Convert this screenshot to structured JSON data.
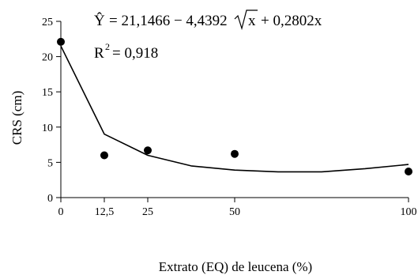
{
  "chart_data": {
    "type": "scatter",
    "xlabel": "Extrato (EQ) de leucena (%)",
    "ylabel": "CRS (cm)",
    "xlim": [
      0,
      100
    ],
    "ylim": [
      0,
      25
    ],
    "x_ticks": [
      0,
      12.5,
      25,
      50,
      100
    ],
    "x_tick_labels": [
      "0",
      "12,5",
      "25",
      "50",
      "100"
    ],
    "y_ticks": [
      0,
      5,
      10,
      15,
      20,
      25
    ],
    "y_tick_labels": [
      "0",
      "5",
      "10",
      "15",
      "20",
      "25"
    ],
    "grid": false,
    "series": [
      {
        "kind": "points",
        "x": [
          0,
          12.5,
          25,
          50,
          100
        ],
        "y": [
          22.1,
          6.0,
          6.7,
          6.2,
          3.7
        ]
      },
      {
        "kind": "fitted-line",
        "x": [
          0,
          12.5,
          25,
          37.5,
          50,
          62.5,
          75,
          87.5,
          100
        ],
        "y": [
          21.5,
          9.0,
          6.0,
          4.5,
          3.9,
          3.65,
          3.65,
          4.1,
          4.7
        ]
      }
    ],
    "annotations": {
      "equation_lhs": "Ŷ",
      "equation_rhs_a": "= 21,1466 − 4,4392",
      "equation_rhs_x": "x",
      "equation_rhs_b": "+ 0,2802x",
      "r2_base": "R",
      "r2_exp": "2",
      "r2_value": "= 0,918"
    },
    "colors": {
      "axis": "#000000",
      "line": "#000000",
      "marker": "#000000"
    }
  }
}
